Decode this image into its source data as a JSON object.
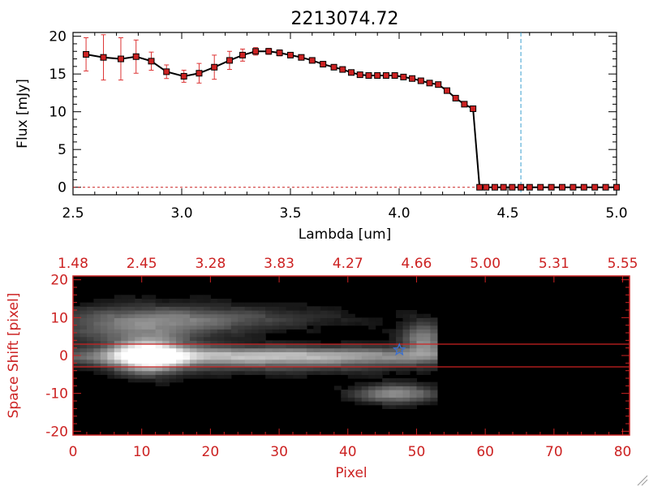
{
  "chart_data": [
    {
      "type": "line",
      "title": "2213074.72",
      "xlabel": "Lambda [um]",
      "ylabel": "Flux [mJy]",
      "xlim": [
        2.5,
        5.0
      ],
      "ylim": [
        -1,
        20.5
      ],
      "xticks": [
        "2.5",
        "3.0",
        "3.5",
        "4.0",
        "4.5",
        "5.0"
      ],
      "yticks": [
        "0",
        "5",
        "10",
        "15",
        "20"
      ],
      "colors": {
        "line": "#000000",
        "marker": "#cc2222",
        "error": "#dd3333",
        "vline": "#3aa0d0"
      },
      "vline_x": 4.56,
      "series": [
        {
          "x": [
            2.56,
            2.64,
            2.72,
            2.79,
            2.86,
            2.93,
            3.01,
            3.08,
            3.15,
            3.22,
            3.28,
            3.34,
            3.4,
            3.45,
            3.5,
            3.55,
            3.6,
            3.65,
            3.7,
            3.74,
            3.78,
            3.82,
            3.86,
            3.9,
            3.94,
            3.98,
            4.02,
            4.06,
            4.1,
            4.14,
            4.18,
            4.22,
            4.26,
            4.3,
            4.34,
            4.37,
            4.4,
            4.44,
            4.48,
            4.52,
            4.56,
            4.6,
            4.65,
            4.7,
            4.75,
            4.8,
            4.85,
            4.9,
            4.95,
            5.0
          ],
          "y": [
            17.6,
            17.2,
            17.0,
            17.3,
            16.7,
            15.3,
            14.7,
            15.1,
            15.9,
            16.8,
            17.5,
            18.0,
            18.0,
            17.8,
            17.5,
            17.2,
            16.8,
            16.3,
            15.9,
            15.6,
            15.2,
            14.9,
            14.8,
            14.8,
            14.8,
            14.8,
            14.6,
            14.4,
            14.1,
            13.8,
            13.6,
            12.8,
            11.8,
            11.0,
            10.4,
            0.0,
            0.0,
            0.0,
            0.0,
            0.0,
            0.0,
            0.0,
            0.0,
            0.0,
            0.0,
            0.0,
            0.0,
            0.0,
            0.0,
            0.0
          ],
          "yerr": [
            2.2,
            3.0,
            2.8,
            2.2,
            1.2,
            0.9,
            0.8,
            1.3,
            1.6,
            1.2,
            0.8,
            0.5,
            0.4,
            0.4,
            0.3,
            0.3,
            0.3,
            0.3,
            0.3,
            0.3,
            0.3,
            0.3,
            0.3,
            0.3,
            0.3,
            0.3,
            0.3,
            0.3,
            0.3,
            0.3,
            0.3,
            0.3,
            0.3,
            0.3,
            0.3,
            0.0,
            0.0,
            0.0,
            0.0,
            0.0,
            0.0,
            0.0,
            0.0,
            0.0,
            0.0,
            0.0,
            0.0,
            0.0,
            0.0,
            0.0
          ]
        }
      ]
    },
    {
      "type": "heatmap",
      "xlabel": "Pixel",
      "ylabel": "Space Shift [pixel]",
      "xlim": [
        0,
        81
      ],
      "ylim": [
        -21,
        21
      ],
      "xticks": [
        "0",
        "10",
        "20",
        "30",
        "40",
        "50",
        "60",
        "70",
        "80"
      ],
      "yticks": [
        "-20",
        "-10",
        "0",
        "10",
        "20"
      ],
      "top_ticks": [
        "1.48",
        "2.45",
        "3.28",
        "3.83",
        "4.27",
        "4.66",
        "5.00",
        "5.31",
        "5.55"
      ],
      "hlines": [
        3,
        -3
      ],
      "marker_x": 47.5,
      "marker_y": 1.5,
      "colors": {
        "axis": "#cc2222",
        "background": "#000000",
        "marker": "#3a70d0"
      },
      "blobs": [
        {
          "cx": 11,
          "cy": 0,
          "sx": 3.5,
          "sy": 3.0,
          "a": 1.0
        },
        {
          "cx": 28,
          "cy": 0,
          "sx": 22,
          "sy": 1.6,
          "a": 0.72
        },
        {
          "cx": 10,
          "cy": 8,
          "sx": 9,
          "sy": 3.5,
          "a": 0.42
        },
        {
          "cx": 23,
          "cy": 10,
          "sx": 12,
          "sy": 2.0,
          "a": 0.22
        },
        {
          "cx": 51,
          "cy": 4.5,
          "sx": 2.2,
          "sy": 3.0,
          "a": 0.5
        },
        {
          "cx": 47,
          "cy": -10,
          "sx": 4.0,
          "sy": 1.7,
          "a": 0.55
        },
        {
          "cx": 30,
          "cy": -3,
          "sx": 15,
          "sy": 1.5,
          "a": 0.18
        }
      ]
    }
  ]
}
